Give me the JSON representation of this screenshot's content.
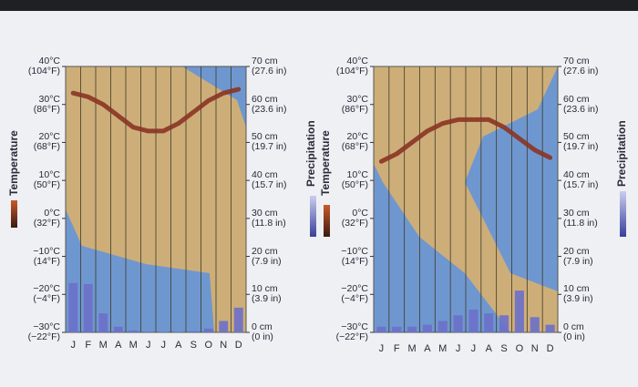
{
  "chart_data": [
    {
      "type": "climograph",
      "categories": [
        "J",
        "F",
        "M",
        "A",
        "M",
        "J",
        "J",
        "A",
        "S",
        "O",
        "N",
        "D"
      ],
      "series": [
        {
          "name": "Temperature",
          "color": "#8a3424",
          "values": [
            33,
            32,
            30,
            27,
            24,
            23,
            23,
            25,
            28,
            31,
            33,
            34
          ]
        },
        {
          "name": "Precipitation",
          "color": "#6b70c9",
          "axis": "y2",
          "values": [
            13,
            12.7,
            5,
            1.5,
            0.5,
            0.2,
            0.1,
            0.1,
            0.3,
            1,
            3,
            6.5
          ]
        }
      ],
      "ylim": [
        -30,
        40
      ],
      "yticks": [
        {
          "value": 40,
          "label": "40°C\n(104°F)"
        },
        {
          "value": 30,
          "label": "30°C\n(86°F)"
        },
        {
          "value": 20,
          "label": "20°C\n(68°F)"
        },
        {
          "value": 10,
          "label": "10°C\n(50°F)"
        },
        {
          "value": 0,
          "label": "0°C\n(32°F)"
        },
        {
          "value": -10,
          "label": "−10°C\n(14°F)"
        },
        {
          "value": -20,
          "label": "−20°C\n(−4°F)"
        },
        {
          "value": -30,
          "label": "−30°C\n(−22°F)"
        }
      ],
      "y2lim": [
        0,
        70
      ],
      "y2ticks": [
        {
          "value": 70,
          "label": "70 cm\n(27.6 in)"
        },
        {
          "value": 60,
          "label": "60 cm\n(23.6 in)"
        },
        {
          "value": 50,
          "label": "50 cm\n(19.7 in)"
        },
        {
          "value": 40,
          "label": "40 cm\n(15.7 in)"
        },
        {
          "value": 30,
          "label": "30 cm\n(11.8 in)"
        },
        {
          "value": 20,
          "label": "20 cm\n(7.9 in)"
        },
        {
          "value": 10,
          "label": "10 cm\n(3.9 in)"
        },
        {
          "value": 0,
          "label": "0 cm\n(0 in)"
        }
      ]
    },
    {
      "type": "climograph",
      "categories": [
        "J",
        "F",
        "M",
        "A",
        "M",
        "J",
        "J",
        "A",
        "S",
        "O",
        "N",
        "D"
      ],
      "series": [
        {
          "name": "Temperature",
          "color": "#8a3424",
          "values": [
            15,
            17,
            20,
            23,
            25,
            26,
            26,
            26,
            24,
            21,
            18,
            16
          ]
        },
        {
          "name": "Precipitation",
          "color": "#6b70c9",
          "axis": "y2",
          "values": [
            1.5,
            1.5,
            1.5,
            2,
            3,
            4.5,
            6,
            5,
            4.5,
            11,
            4,
            2
          ]
        }
      ],
      "ylim": [
        -30,
        40
      ],
      "yticks": [
        {
          "value": 40,
          "label": "40°C\n(104°F)"
        },
        {
          "value": 30,
          "label": "30°C\n(86°F)"
        },
        {
          "value": 20,
          "label": "20°C\n(68°F)"
        },
        {
          "value": 10,
          "label": "10°C\n(50°F)"
        },
        {
          "value": 0,
          "label": "0°C\n(32°F)"
        },
        {
          "value": -10,
          "label": "−10°C\n(14°F)"
        },
        {
          "value": -20,
          "label": "−20°C\n(−4°F)"
        },
        {
          "value": -30,
          "label": "−30°C\n(−22°F)"
        }
      ],
      "y2lim": [
        0,
        70
      ],
      "y2ticks": [
        {
          "value": 70,
          "label": "70 cm\n(27.6 in)"
        },
        {
          "value": 60,
          "label": "60 cm\n(23.6 in)"
        },
        {
          "value": 50,
          "label": "50 cm\n(19.7 in)"
        },
        {
          "value": 40,
          "label": "40 cm\n(15.7 in)"
        },
        {
          "value": 30,
          "label": "30 cm\n(11.8 in)"
        },
        {
          "value": 20,
          "label": "20 cm\n(7.9 in)"
        },
        {
          "value": 10,
          "label": "10 cm\n(3.9 in)"
        },
        {
          "value": 0,
          "label": "0 cm\n(0 in)"
        }
      ]
    }
  ]
}
